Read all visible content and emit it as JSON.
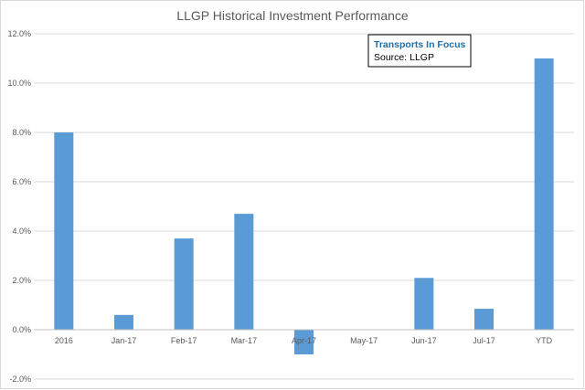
{
  "chart_data": {
    "type": "bar",
    "title": "LLGP Historical Investment Performance",
    "xlabel": "",
    "ylabel": "",
    "categories": [
      "2016",
      "Jan-17",
      "Feb-17",
      "Mar-17",
      "Apr-17",
      "May-17",
      "Jun-17",
      "Jul-17",
      "YTD"
    ],
    "values": [
      8.0,
      0.6,
      3.7,
      4.7,
      -1.0,
      0.0,
      2.1,
      0.85,
      11.0
    ],
    "ylim": [
      -2,
      12
    ],
    "y_ticks": [
      "-2.0%",
      "0.0%",
      "2.0%",
      "4.0%",
      "6.0%",
      "8.0%",
      "10.0%",
      "12.0%"
    ],
    "y_tick_values": [
      -2,
      0,
      2,
      4,
      6,
      8,
      10,
      12
    ],
    "bar_color": "#5b9bd5",
    "grid": true,
    "legend": "none",
    "annotation": {
      "title": "Transports In Focus",
      "text": "Source: LLGP"
    }
  }
}
